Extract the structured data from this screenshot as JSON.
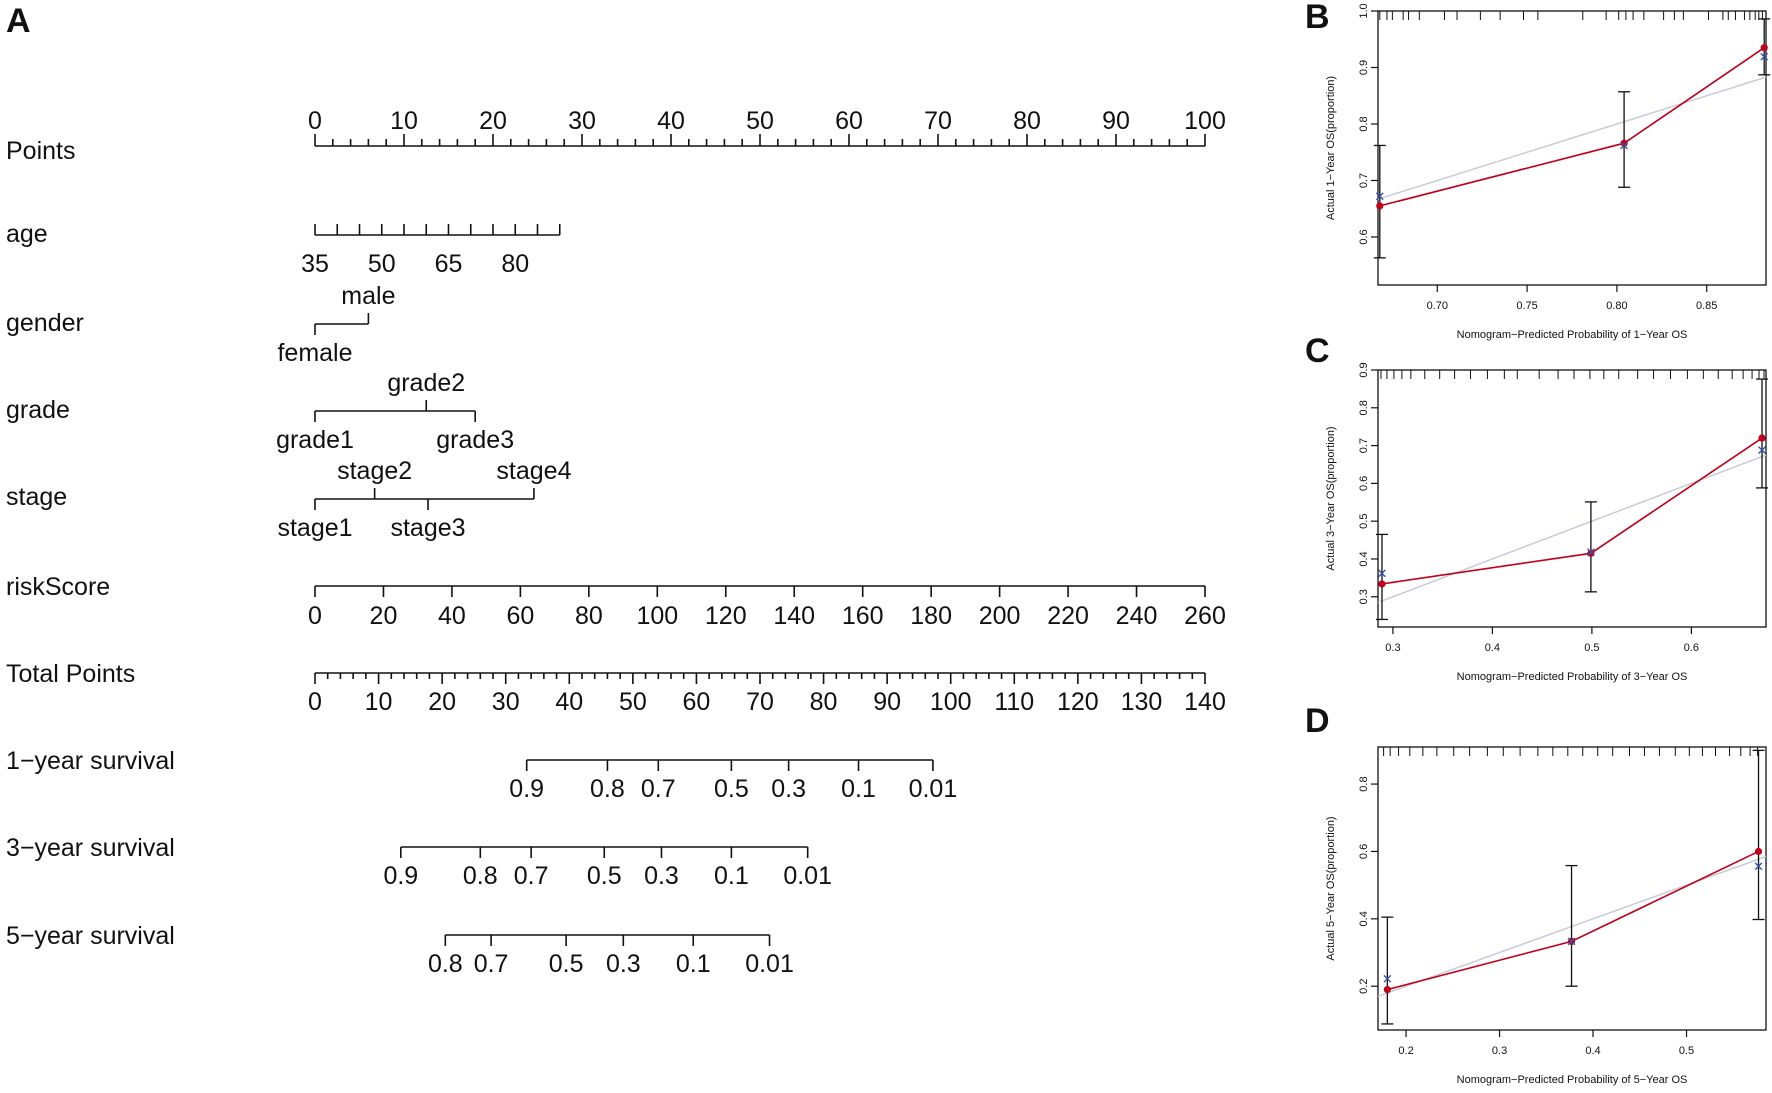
{
  "panel_labels": {
    "a": "A",
    "b": "B",
    "c": "C",
    "d": "D"
  },
  "colors": {
    "observed": "#c0001a",
    "ideal": "#c8ccd8",
    "bootstrap": "#3a53a8",
    "axis": "#111111"
  },
  "chart_data": [
    {
      "type": "nomogram",
      "panel": "A",
      "rows": [
        {
          "label": "Points",
          "kind": "points",
          "range": [
            0,
            100
          ],
          "label_values": [
            0,
            10,
            20,
            30,
            40,
            50,
            60,
            70,
            80,
            90,
            100
          ],
          "tick_step": 2
        },
        {
          "label": "age",
          "kind": "scale",
          "values": [
            35,
            40,
            45,
            50,
            55,
            60,
            65,
            70,
            75,
            80,
            85,
            90
          ],
          "labels": [
            "35",
            "50",
            "65",
            "80"
          ],
          "points": [
            0,
            27.5
          ]
        },
        {
          "label": "gender",
          "kind": "categorical",
          "levels": [
            {
              "name": "female",
              "points": 0
            },
            {
              "name": "male",
              "points": 6
            }
          ]
        },
        {
          "label": "grade",
          "kind": "categorical",
          "levels": [
            {
              "name": "grade1",
              "points": 0
            },
            {
              "name": "grade2",
              "points": 12.5
            },
            {
              "name": "grade3",
              "points": 18
            }
          ]
        },
        {
          "label": "stage",
          "kind": "categorical",
          "levels": [
            {
              "name": "stage1",
              "points": 0
            },
            {
              "name": "stage2",
              "points": 6.7
            },
            {
              "name": "stage3",
              "points": 12.7
            },
            {
              "name": "stage4",
              "points": 24.6
            }
          ]
        },
        {
          "label": "riskScore",
          "kind": "scale",
          "range": [
            0,
            260
          ],
          "label_values": [
            0,
            20,
            40,
            60,
            80,
            100,
            120,
            140,
            160,
            180,
            200,
            220,
            240,
            260
          ],
          "points": [
            0,
            100
          ]
        },
        {
          "label": "Total Points",
          "kind": "total",
          "range": [
            0,
            140
          ],
          "label_values": [
            0,
            10,
            20,
            30,
            40,
            50,
            60,
            70,
            80,
            90,
            100,
            110,
            120,
            130,
            140
          ],
          "tick_step": 2
        },
        {
          "label": "1−year survival",
          "kind": "probability",
          "ticks": [
            {
              "value": "0.9",
              "total": 33.3
            },
            {
              "value": "0.8",
              "total": 46
            },
            {
              "value": "0.7",
              "total": 54
            },
            {
              "value": "0.5",
              "total": 65.5
            },
            {
              "value": "0.3",
              "total": 74.5
            },
            {
              "value": "0.1",
              "total": 85.5
            },
            {
              "value": "0.01",
              "total": 97.2
            }
          ]
        },
        {
          "label": "3−year survival",
          "kind": "probability",
          "ticks": [
            {
              "value": "0.9",
              "total": 13.5
            },
            {
              "value": "0.8",
              "total": 26
            },
            {
              "value": "0.7",
              "total": 34
            },
            {
              "value": "0.5",
              "total": 45.5
            },
            {
              "value": "0.3",
              "total": 54.5
            },
            {
              "value": "0.1",
              "total": 65.5
            },
            {
              "value": "0.01",
              "total": 77.5
            }
          ]
        },
        {
          "label": "5−year survival",
          "kind": "probability",
          "ticks": [
            {
              "value": "0.8",
              "total": 20.5
            },
            {
              "value": "0.7",
              "total": 27.7
            },
            {
              "value": "0.5",
              "total": 39.5
            },
            {
              "value": "0.3",
              "total": 48.5
            },
            {
              "value": "0.1",
              "total": 59.5
            },
            {
              "value": "0.01",
              "total": 71.5
            }
          ]
        }
      ]
    },
    {
      "type": "scatter",
      "panel": "B",
      "xlabel": "Nomogram−Predicted Probability of 1−Year OS",
      "ylabel": "Actual 1−Year OS(proportion)",
      "xlim": [
        0.667,
        0.883
      ],
      "ylim": [
        0.515,
        1.0
      ],
      "xticks": [
        "0.70",
        "0.75",
        "0.80",
        "0.85"
      ],
      "yticks": [
        "0.6",
        "0.7",
        "0.8",
        "0.9",
        "1.0"
      ],
      "rug": [
        0.668,
        0.672,
        0.675,
        0.681,
        0.684,
        0.69,
        0.704,
        0.711,
        0.724,
        0.735,
        0.748,
        0.756,
        0.781,
        0.794,
        0.801,
        0.805,
        0.809,
        0.815,
        0.826,
        0.832,
        0.837,
        0.851,
        0.859,
        0.862,
        0.866,
        0.871,
        0.874,
        0.877,
        0.879,
        0.881
      ],
      "ideal": [
        [
          0.667,
          0.667
        ],
        [
          0.883,
          0.883
        ]
      ],
      "observed": [
        {
          "x": 0.668,
          "y": 0.655,
          "lo": 0.563,
          "hi": 0.762
        },
        {
          "x": 0.804,
          "y": 0.766,
          "lo": 0.688,
          "hi": 0.857
        },
        {
          "x": 0.882,
          "y": 0.935,
          "lo": 0.887,
          "hi": 0.986
        }
      ],
      "bootstrap": [
        {
          "x": 0.668,
          "y": 0.672
        },
        {
          "x": 0.804,
          "y": 0.762
        },
        {
          "x": 0.882,
          "y": 0.919
        }
      ]
    },
    {
      "type": "scatter",
      "panel": "C",
      "xlabel": "Nomogram−Predicted Probability of 3−Year OS",
      "ylabel": "Actual 3−Year OS(proportion)",
      "xlim": [
        0.285,
        0.675
      ],
      "ylim": [
        0.22,
        0.9
      ],
      "xticks": [
        "0.3",
        "0.4",
        "0.5",
        "0.6"
      ],
      "yticks": [
        "0.3",
        "0.4",
        "0.5",
        "0.6",
        "0.7",
        "0.8",
        "0.9"
      ],
      "rug": [
        0.288,
        0.294,
        0.301,
        0.309,
        0.318,
        0.332,
        0.347,
        0.362,
        0.378,
        0.395,
        0.412,
        0.425,
        0.447,
        0.466,
        0.482,
        0.498,
        0.512,
        0.527,
        0.546,
        0.562,
        0.579,
        0.596,
        0.612,
        0.627,
        0.641,
        0.652,
        0.661,
        0.668,
        0.673
      ],
      "ideal": [
        [
          0.285,
          0.285
        ],
        [
          0.675,
          0.675
        ]
      ],
      "observed": [
        {
          "x": 0.289,
          "y": 0.334,
          "lo": 0.24,
          "hi": 0.465
        },
        {
          "x": 0.499,
          "y": 0.415,
          "lo": 0.313,
          "hi": 0.551
        },
        {
          "x": 0.671,
          "y": 0.72,
          "lo": 0.588,
          "hi": 0.876
        }
      ],
      "bootstrap": [
        {
          "x": 0.289,
          "y": 0.362
        },
        {
          "x": 0.499,
          "y": 0.418
        },
        {
          "x": 0.671,
          "y": 0.688
        }
      ]
    },
    {
      "type": "scatter",
      "panel": "D",
      "xlabel": "Nomogram−Predicted Probability of 5−Year OS",
      "ylabel": "Actual 5−Year OS(proportion)",
      "xlim": [
        0.17,
        0.585
      ],
      "ylim": [
        0.07,
        0.91
      ],
      "xticks": [
        "0.2",
        "0.3",
        "0.4",
        "0.5"
      ],
      "yticks": [
        "0.2",
        "0.4",
        "0.6",
        "0.8"
      ],
      "rug": [
        0.176,
        0.183,
        0.192,
        0.204,
        0.218,
        0.233,
        0.251,
        0.268,
        0.287,
        0.304,
        0.322,
        0.341,
        0.357,
        0.373,
        0.389,
        0.405,
        0.421,
        0.439,
        0.455,
        0.471,
        0.488,
        0.503,
        0.517,
        0.531,
        0.546,
        0.558,
        0.568,
        0.576
      ],
      "ideal": [
        [
          0.17,
          0.17
        ],
        [
          0.585,
          0.585
        ]
      ],
      "observed": [
        {
          "x": 0.18,
          "y": 0.19,
          "lo": 0.088,
          "hi": 0.405
        },
        {
          "x": 0.377,
          "y": 0.333,
          "lo": 0.2,
          "hi": 0.558
        },
        {
          "x": 0.577,
          "y": 0.6,
          "lo": 0.398,
          "hi": 0.9
        }
      ],
      "bootstrap": [
        {
          "x": 0.18,
          "y": 0.222
        },
        {
          "x": 0.377,
          "y": 0.333
        },
        {
          "x": 0.577,
          "y": 0.556
        }
      ]
    }
  ]
}
